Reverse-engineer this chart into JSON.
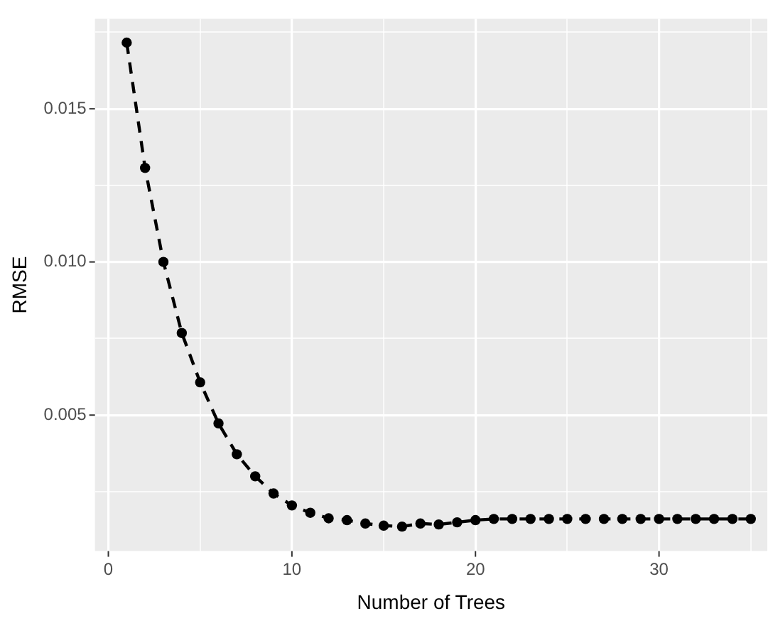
{
  "chart_data": {
    "type": "line",
    "xlabel": "Number of Trees",
    "ylabel": "RMSE",
    "x": [
      1,
      2,
      3,
      4,
      5,
      6,
      7,
      8,
      9,
      10,
      11,
      12,
      13,
      14,
      15,
      16,
      17,
      18,
      19,
      20,
      21,
      22,
      23,
      24,
      25,
      26,
      27,
      28,
      29,
      30,
      31,
      32,
      33,
      34,
      35
    ],
    "series": [
      {
        "color": "#000000",
        "values": [
          0.01716,
          0.01307,
          0.01,
          0.00768,
          0.00607,
          0.00473,
          0.00372,
          0.003,
          0.00244,
          0.00205,
          0.00181,
          0.00163,
          0.00157,
          0.00146,
          0.00139,
          0.00136,
          0.00146,
          0.00143,
          0.0015,
          0.00157,
          0.00161,
          0.00161,
          0.00161,
          0.00161,
          0.00161,
          0.00161,
          0.00161,
          0.00161,
          0.00161,
          0.00161,
          0.00161,
          0.00161,
          0.00161,
          0.00161,
          0.00161
        ]
      }
    ],
    "xlim": [
      -0.73,
      35.9
    ],
    "ylim": [
      0.00056,
      0.01794
    ],
    "xticks": [
      0,
      {
        "value": 5,
        "label": null
      },
      10,
      {
        "value": 15,
        "label": null
      },
      20,
      {
        "value": 25,
        "label": null
      },
      30,
      {
        "value": 35,
        "label": null
      }
    ],
    "yticks": [
      {
        "value": 0.0025,
        "label": null
      },
      0.005,
      {
        "value": 0.0075,
        "label": null
      },
      {
        "value": 0.01,
        "label": "0.010"
      },
      {
        "value": 0.0125,
        "label": null
      },
      0.015,
      {
        "value": 0.0175,
        "label": null
      }
    ],
    "grid": true,
    "marker": "circle",
    "line_style": "dashed",
    "legend": false
  }
}
